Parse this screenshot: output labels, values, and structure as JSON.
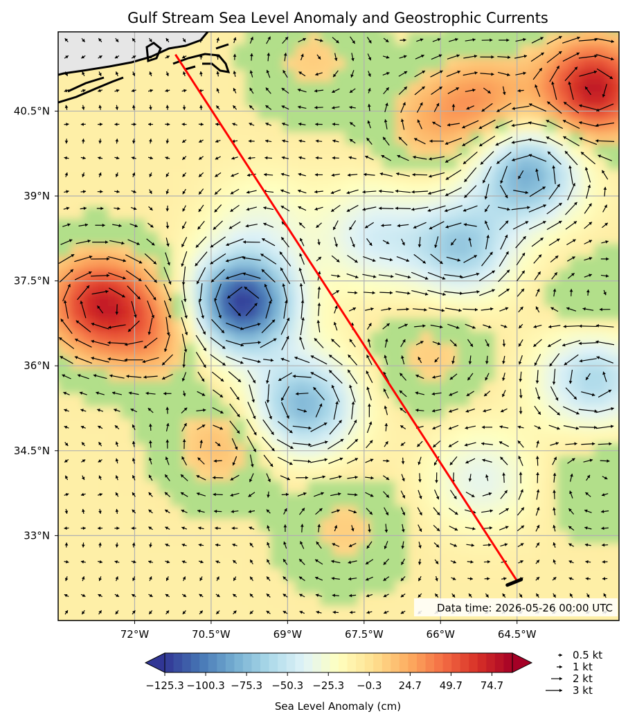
{
  "title": "Gulf Stream Sea Level Anomaly and Geostrophic Currents",
  "data_time": "Data time: 2026-05-26 00:00 UTC",
  "colors": {
    "track_line": "#ff0000",
    "land": "#e6e6e6",
    "grid": "#b0b0b0",
    "arrow": "#000000"
  },
  "chart_data": {
    "type": "heatmap",
    "lon_range": [
      -73.5,
      -62.5
    ],
    "lat_range": [
      31.5,
      41.9
    ],
    "x_ticks": [
      "72°W",
      "70.5°W",
      "69°W",
      "67.5°W",
      "66°W",
      "64.5°W"
    ],
    "x_tick_values": [
      -72,
      -70.5,
      -69,
      -67.5,
      -66,
      -64.5
    ],
    "y_ticks": [
      "40.5°N",
      "39°N",
      "37.5°N",
      "36°N",
      "34.5°N",
      "33°N"
    ],
    "y_tick_values": [
      40.5,
      39,
      37.5,
      36,
      34.5,
      33
    ],
    "grid": true,
    "colorbar": {
      "label": "Sea Level Anomaly (cm)",
      "colormap": "RdYlBu_r",
      "tick_labels": [
        "−125.3",
        "−100.3",
        "−75.3",
        "−50.3",
        "−25.3",
        "−0.3",
        "24.7",
        "49.7",
        "74.7"
      ],
      "tick_values": [
        -125.3,
        -100.3,
        -75.3,
        -50.3,
        -25.3,
        -0.3,
        24.7,
        49.7,
        74.7
      ],
      "vmin": -125.3,
      "vmax": 87.2,
      "extend": "both"
    },
    "anomaly_features": [
      {
        "kind": "high",
        "lon": -63.0,
        "lat": 40.9,
        "value": 85
      },
      {
        "kind": "high",
        "lon": -65.1,
        "lat": 40.7,
        "value": 35
      },
      {
        "kind": "high",
        "lon": -66.2,
        "lat": 40.3,
        "value": 25
      },
      {
        "kind": "high",
        "lon": -72.7,
        "lat": 37.1,
        "value": 75
      },
      {
        "kind": "high",
        "lon": -71.6,
        "lat": 36.6,
        "value": 35
      },
      {
        "kind": "high",
        "lon": -70.3,
        "lat": 34.6,
        "value": 25
      },
      {
        "kind": "high",
        "lon": -66.2,
        "lat": 36.2,
        "value": 18
      },
      {
        "kind": "high",
        "lon": -67.9,
        "lat": 33.1,
        "value": 18
      },
      {
        "kind": "high",
        "lon": -68.5,
        "lat": 41.4,
        "value": 18
      },
      {
        "kind": "high",
        "lon": -62.9,
        "lat": 37.0,
        "value": 15
      },
      {
        "kind": "high",
        "lon": -62.9,
        "lat": 34.0,
        "value": 12
      },
      {
        "kind": "low",
        "lon": -69.9,
        "lat": 37.1,
        "value": -115
      },
      {
        "kind": "low",
        "lon": -64.3,
        "lat": 39.4,
        "value": -75
      },
      {
        "kind": "low",
        "lon": -65.6,
        "lat": 38.1,
        "value": -60
      },
      {
        "kind": "low",
        "lon": -67.3,
        "lat": 38.3,
        "value": -35
      },
      {
        "kind": "low",
        "lon": -68.7,
        "lat": 35.3,
        "value": -70
      },
      {
        "kind": "low",
        "lon": -63.0,
        "lat": 35.8,
        "value": -55
      },
      {
        "kind": "low",
        "lon": -65.2,
        "lat": 34.0,
        "value": -28
      },
      {
        "kind": "low",
        "lon": -69.5,
        "lat": 38.5,
        "value": -20
      }
    ],
    "track_line": [
      {
        "lon": -71.2,
        "lat": 41.5
      },
      {
        "lon": -64.5,
        "lat": 32.2
      }
    ],
    "quiver_key": [
      {
        "label": "0.5 kt",
        "speed_kt": 0.5
      },
      {
        "label": "1 kt",
        "speed_kt": 1
      },
      {
        "label": "2 kt",
        "speed_kt": 2
      },
      {
        "label": "3 kt",
        "speed_kt": 3
      }
    ]
  }
}
